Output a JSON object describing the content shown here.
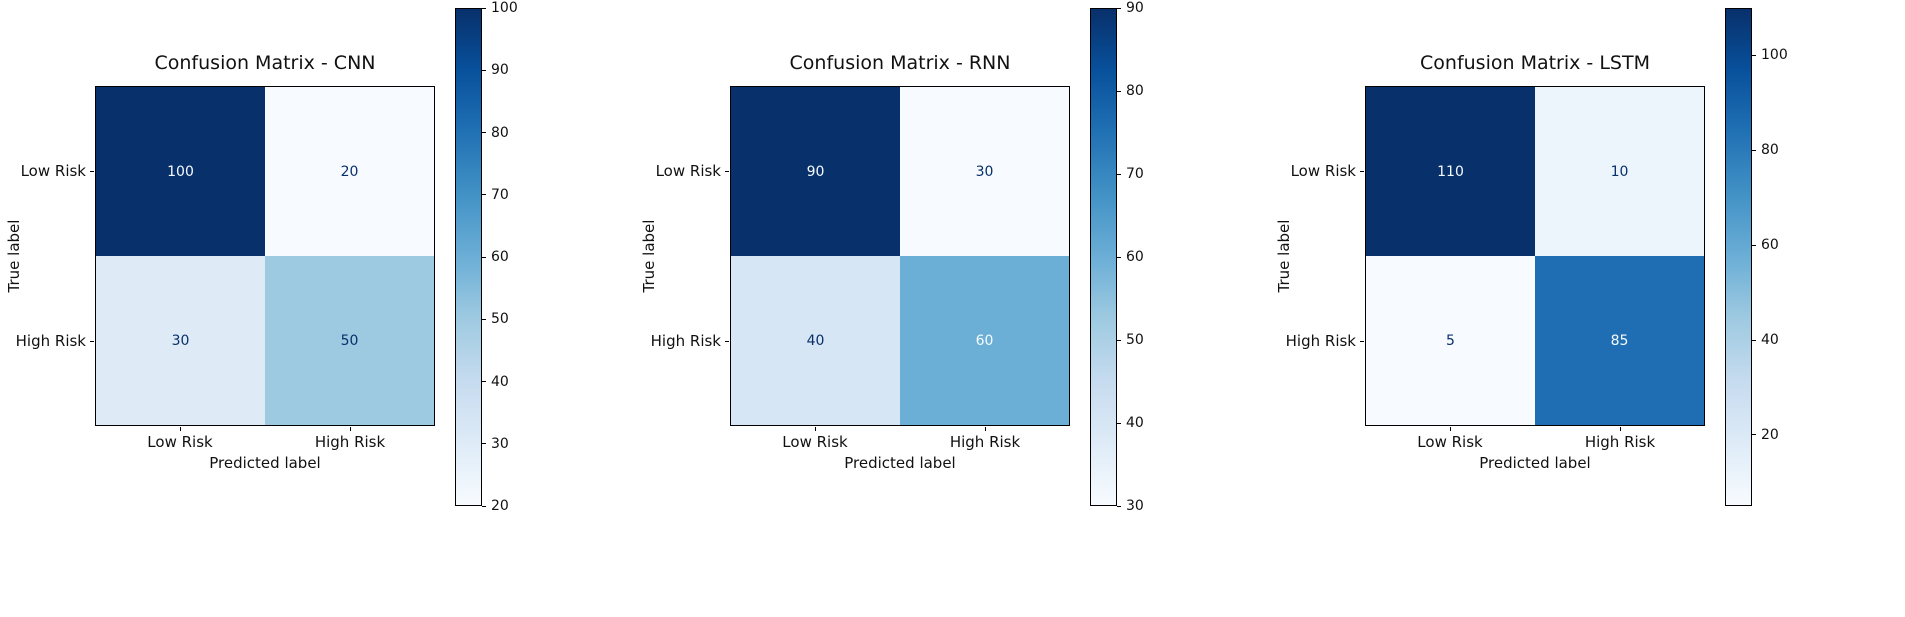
{
  "figure": {
    "background": "#ffffff"
  },
  "colors": {
    "colormap_name": "Blues",
    "blues_stops": [
      "#f7fbff",
      "#deebf7",
      "#c6dbef",
      "#9ecae1",
      "#6baed6",
      "#4292c6",
      "#2171b5",
      "#08519c",
      "#08306b"
    ],
    "cell_text_dark": "#08306b",
    "cell_text_light": "#f7fbff",
    "axis_text": "#111111",
    "spine": "#000000"
  },
  "chart_data": [
    {
      "type": "heatmap",
      "title": "Confusion Matrix - CNN",
      "xlabel": "Predicted label",
      "ylabel": "True label",
      "x_tick_labels": [
        "Low Risk",
        "High Risk"
      ],
      "y_tick_labels": [
        "Low Risk",
        "High Risk"
      ],
      "matrix": [
        [
          100,
          20
        ],
        [
          30,
          50
        ]
      ],
      "vmin": 20,
      "vmax": 100,
      "colorbar_ticks": [
        20,
        30,
        40,
        50,
        60,
        70,
        80,
        90,
        100
      ],
      "legend_position": "right-colorbar",
      "grid": false
    },
    {
      "type": "heatmap",
      "title": "Confusion Matrix - RNN",
      "xlabel": "Predicted label",
      "ylabel": "True label",
      "x_tick_labels": [
        "Low Risk",
        "High Risk"
      ],
      "y_tick_labels": [
        "Low Risk",
        "High Risk"
      ],
      "matrix": [
        [
          90,
          30
        ],
        [
          40,
          60
        ]
      ],
      "vmin": 30,
      "vmax": 90,
      "colorbar_ticks": [
        30,
        40,
        50,
        60,
        70,
        80,
        90
      ],
      "legend_position": "right-colorbar",
      "grid": false
    },
    {
      "type": "heatmap",
      "title": "Confusion Matrix - LSTM",
      "xlabel": "Predicted label",
      "ylabel": "True label",
      "x_tick_labels": [
        "Low Risk",
        "High Risk"
      ],
      "y_tick_labels": [
        "Low Risk",
        "High Risk"
      ],
      "matrix": [
        [
          110,
          10
        ],
        [
          5,
          85
        ]
      ],
      "vmin": 5,
      "vmax": 110,
      "colorbar_ticks": [
        20,
        40,
        60,
        80,
        100
      ],
      "legend_position": "right-colorbar",
      "grid": false
    }
  ]
}
